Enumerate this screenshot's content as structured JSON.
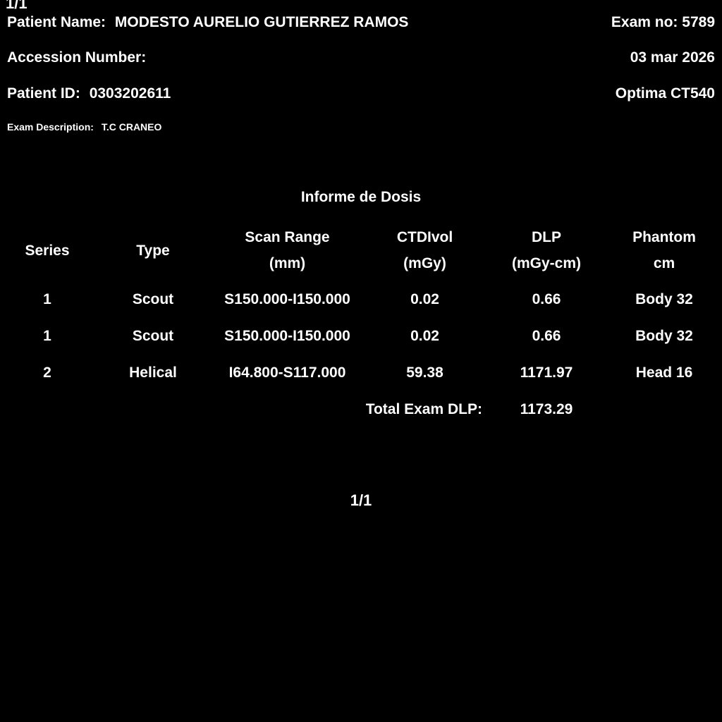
{
  "colors": {
    "background": "#000000",
    "text": "#ffffff"
  },
  "page_indicator_top": "1/1",
  "page_indicator_bottom": "1/1",
  "header": {
    "patient_name_label": "Patient Name:",
    "patient_name_value": "MODESTO AURELIO GUTIERREZ RAMOS",
    "exam_no_label": "Exam no:",
    "exam_no_value": "5789",
    "accession_label": "Accession Number:",
    "accession_value": "",
    "exam_date": "03 mar 2026",
    "patient_id_label": "Patient ID:",
    "patient_id_value": "0303202611",
    "scanner_model": "Optima CT540",
    "exam_description_label": "Exam Description:",
    "exam_description_value": "T.C CRANEO"
  },
  "report": {
    "title": "Informe de Dosis",
    "columns": [
      {
        "line1": "Series",
        "line2": ""
      },
      {
        "line1": "Type",
        "line2": ""
      },
      {
        "line1": "Scan Range",
        "line2": "(mm)"
      },
      {
        "line1": "CTDIvol",
        "line2": "(mGy)"
      },
      {
        "line1": "DLP",
        "line2": "(mGy-cm)"
      },
      {
        "line1": "Phantom",
        "line2": "cm"
      }
    ],
    "rows": [
      [
        "1",
        "Scout",
        "S150.000-I150.000",
        "0.02",
        "0.66",
        "Body 32"
      ],
      [
        "1",
        "Scout",
        "S150.000-I150.000",
        "0.02",
        "0.66",
        "Body 32"
      ],
      [
        "2",
        "Helical",
        "I64.800-S117.000",
        "59.38",
        "1171.97",
        "Head 16"
      ]
    ],
    "total_label": "Total Exam DLP:",
    "total_value": "1173.29"
  }
}
